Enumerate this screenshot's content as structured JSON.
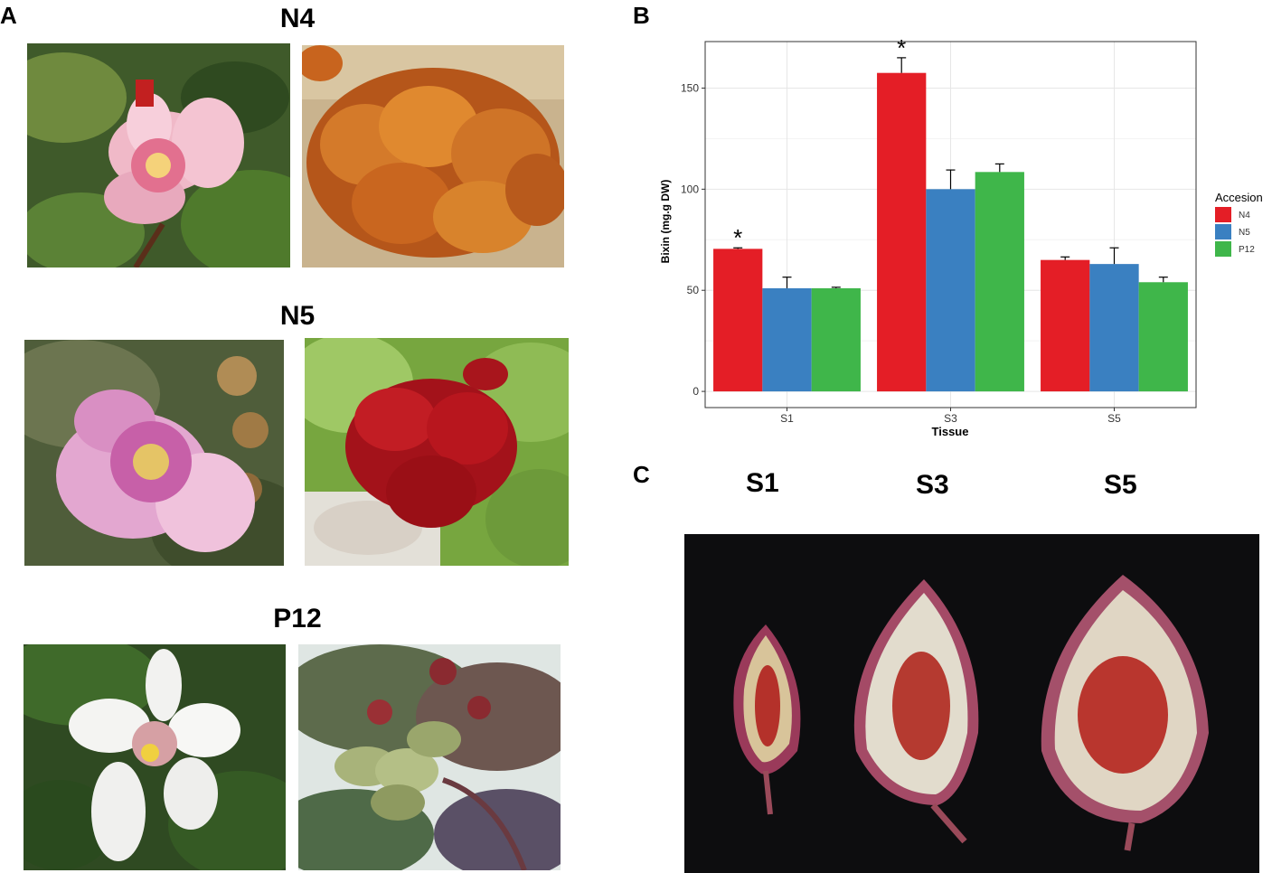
{
  "panels": {
    "a": "A",
    "b": "B",
    "c": "C"
  },
  "accessions": {
    "n4": "N4",
    "n5": "N5",
    "p12": "P12"
  },
  "stages": {
    "s1": "S1",
    "s3": "S3",
    "s5": "S5"
  },
  "photos": {
    "n4_flower": "pink-flower",
    "n4_fruit": "orange-spiny-capsules",
    "n5_flower": "pink-flower",
    "n5_fruit": "red-spiny-capsules",
    "p12_flower": "white-flower",
    "p12_fruit": "green-spiny-capsules",
    "seed_pods": "opened-capsules-with-red-seeds"
  },
  "chart_data": {
    "type": "bar",
    "categories": [
      "S1",
      "S3",
      "S5"
    ],
    "series": [
      {
        "name": "N4",
        "color": "#e41e26",
        "values": [
          70.5,
          157.5,
          65
        ],
        "errors": [
          0.5,
          7.5,
          1.5
        ],
        "marks": [
          "*",
          "*",
          ""
        ]
      },
      {
        "name": "N5",
        "color": "#3a80c1",
        "values": [
          51,
          100,
          63
        ],
        "errors": [
          5.5,
          9.5,
          8
        ],
        "marks": [
          "",
          "",
          ""
        ]
      },
      {
        "name": "P12",
        "color": "#3fb64a",
        "values": [
          51,
          108.5,
          54
        ],
        "errors": [
          0.5,
          4,
          2.5
        ],
        "marks": [
          "",
          "",
          ""
        ]
      }
    ],
    "xlabel": "Tissue",
    "ylabel": "Bixin (mg.g DW)",
    "yticks": [
      0,
      50,
      100,
      150
    ],
    "ylim": [
      -8,
      173
    ],
    "grid": true,
    "legend": {
      "title": "Accesion",
      "position": "right"
    }
  }
}
